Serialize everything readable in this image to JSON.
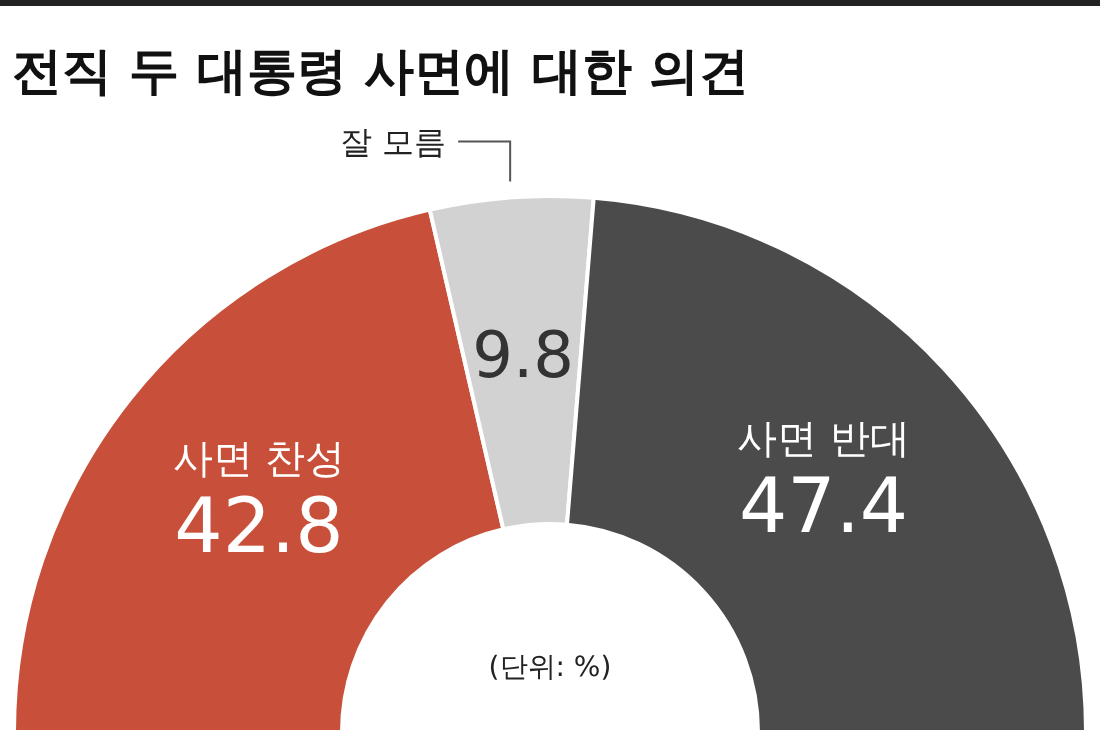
{
  "chart_data": {
    "type": "donut",
    "title": "전직 두 대통령 사면에 대한 의견",
    "categories": [
      "사면 찬성",
      "잘 모름",
      "사면 반대"
    ],
    "values": [
      42.8,
      9.8,
      47.4
    ],
    "colors": [
      "#c8503a",
      "#d2d2d2",
      "#4b4b4b"
    ],
    "data_labels": true,
    "annotations": [
      "(단위: %)"
    ]
  }
}
